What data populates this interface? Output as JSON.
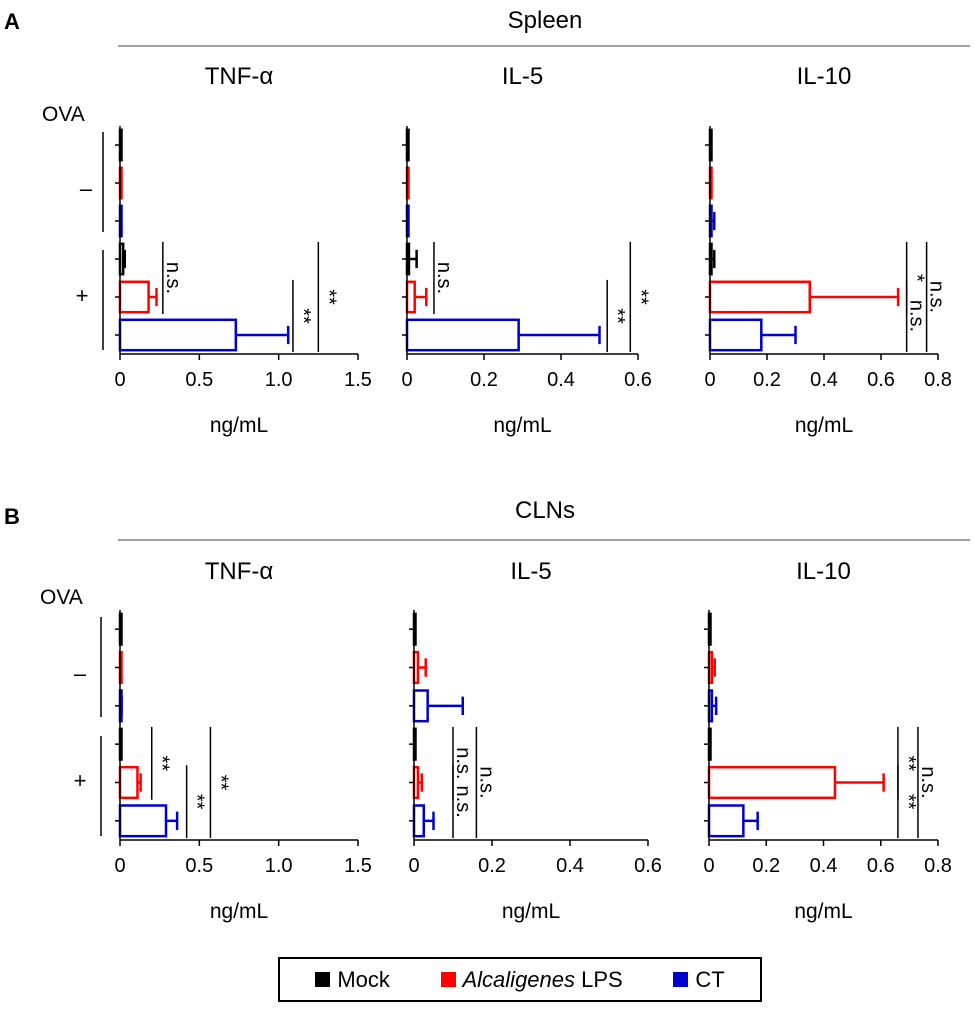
{
  "panels": [
    {
      "letter": "A",
      "title": "Spleen"
    },
    {
      "letter": "B",
      "title": "CLNs"
    }
  ],
  "ova_label": "OVA",
  "row_group_labels": [
    "–",
    "+"
  ],
  "series": [
    {
      "name": "Mock",
      "color": "#000000"
    },
    {
      "name": "Alcaligenes LPS",
      "color": "#ff0000"
    },
    {
      "name": "CT",
      "color": "#0000cc"
    }
  ],
  "legend": {
    "mock": "Mock",
    "lps_italic": "Alcaligenes",
    "lps_rest": " LPS",
    "ct": "CT"
  },
  "chart_data": [
    {
      "type": "bar",
      "panel": "A",
      "group": "Spleen",
      "title": "TNF-α",
      "xlabel": "ng/mL",
      "xlim": [
        0,
        1.5
      ],
      "xticks": [
        0,
        0.5,
        1.0,
        1.5
      ],
      "xtick_labels": [
        "0",
        "0.5",
        "1.0",
        "1.5"
      ],
      "rows": [
        {
          "ova": "-",
          "series": "Mock",
          "value": 0.0,
          "error": 0.0
        },
        {
          "ova": "-",
          "series": "Alcaligenes LPS",
          "value": 0.0,
          "error": 0.0
        },
        {
          "ova": "-",
          "series": "CT",
          "value": 0.0,
          "error": 0.0
        },
        {
          "ova": "+",
          "series": "Mock",
          "value": 0.02,
          "error": 0.01
        },
        {
          "ova": "+",
          "series": "Alcaligenes LPS",
          "value": 0.18,
          "error": 0.05
        },
        {
          "ova": "+",
          "series": "CT",
          "value": 0.73,
          "error": 0.33
        }
      ],
      "annotations": [
        {
          "text": "n.s.",
          "span": [
            3,
            4
          ],
          "x": 0.27
        },
        {
          "text": "**",
          "span": [
            4,
            5
          ],
          "x": 1.09
        },
        {
          "text": "**",
          "span": [
            3,
            5
          ],
          "x": 1.25
        }
      ]
    },
    {
      "type": "bar",
      "panel": "A",
      "group": "Spleen",
      "title": "IL-5",
      "xlabel": "ng/mL",
      "xlim": [
        0,
        0.6
      ],
      "xticks": [
        0,
        0.2,
        0.4,
        0.6
      ],
      "xtick_labels": [
        "0",
        "0.2",
        "0.4",
        "0.6"
      ],
      "rows": [
        {
          "ova": "-",
          "series": "Mock",
          "value": 0.0,
          "error": 0.0
        },
        {
          "ova": "-",
          "series": "Alcaligenes LPS",
          "value": 0.0,
          "error": 0.0
        },
        {
          "ova": "-",
          "series": "CT",
          "value": 0.0,
          "error": 0.0
        },
        {
          "ova": "+",
          "series": "Mock",
          "value": 0.005,
          "error": 0.02
        },
        {
          "ova": "+",
          "series": "Alcaligenes LPS",
          "value": 0.02,
          "error": 0.03
        },
        {
          "ova": "+",
          "series": "CT",
          "value": 0.29,
          "error": 0.21
        }
      ],
      "annotations": [
        {
          "text": "n.s.",
          "span": [
            3,
            4
          ],
          "x": 0.07
        },
        {
          "text": "**",
          "span": [
            4,
            5
          ],
          "x": 0.52
        },
        {
          "text": "**",
          "span": [
            3,
            5
          ],
          "x": 0.58
        }
      ]
    },
    {
      "type": "bar",
      "panel": "A",
      "group": "Spleen",
      "title": "IL-10",
      "xlabel": "ng/mL",
      "xlim": [
        0,
        0.8
      ],
      "xticks": [
        0,
        0.2,
        0.4,
        0.6,
        0.8
      ],
      "xtick_labels": [
        "0",
        "0.2",
        "0.4",
        "0.6",
        "0.8"
      ],
      "rows": [
        {
          "ova": "-",
          "series": "Mock",
          "value": 0.0,
          "error": 0.0
        },
        {
          "ova": "-",
          "series": "Alcaligenes LPS",
          "value": 0.0,
          "error": 0.0
        },
        {
          "ova": "-",
          "series": "CT",
          "value": 0.005,
          "error": 0.01
        },
        {
          "ova": "+",
          "series": "Mock",
          "value": 0.005,
          "error": 0.01
        },
        {
          "ova": "+",
          "series": "Alcaligenes LPS",
          "value": 0.35,
          "error": 0.31
        },
        {
          "ova": "+",
          "series": "CT",
          "value": 0.18,
          "error": 0.12
        }
      ],
      "annotations": [
        {
          "text": "*",
          "span": [
            3,
            4
          ],
          "x": 0.69
        },
        {
          "text": "n.s.",
          "span": [
            4,
            5
          ],
          "x": 0.69
        },
        {
          "text": "n.s.",
          "span": [
            3,
            5
          ],
          "x": 0.76
        }
      ]
    },
    {
      "type": "bar",
      "panel": "B",
      "group": "CLNs",
      "title": "TNF-α",
      "xlabel": "ng/mL",
      "xlim": [
        0,
        1.5
      ],
      "xticks": [
        0,
        0.5,
        1.0,
        1.5
      ],
      "xtick_labels": [
        "0",
        "0.5",
        "1.0",
        "1.5"
      ],
      "rows": [
        {
          "ova": "-",
          "series": "Mock",
          "value": 0.0,
          "error": 0.0
        },
        {
          "ova": "-",
          "series": "Alcaligenes LPS",
          "value": 0.0,
          "error": 0.0
        },
        {
          "ova": "-",
          "series": "CT",
          "value": 0.0,
          "error": 0.01
        },
        {
          "ova": "+",
          "series": "Mock",
          "value": 0.0,
          "error": 0.0
        },
        {
          "ova": "+",
          "series": "Alcaligenes LPS",
          "value": 0.11,
          "error": 0.02
        },
        {
          "ova": "+",
          "series": "CT",
          "value": 0.29,
          "error": 0.07
        }
      ],
      "annotations": [
        {
          "text": "**",
          "span": [
            3,
            4
          ],
          "x": 0.2
        },
        {
          "text": "**",
          "span": [
            4,
            5
          ],
          "x": 0.42
        },
        {
          "text": "**",
          "span": [
            3,
            5
          ],
          "x": 0.57
        }
      ]
    },
    {
      "type": "bar",
      "panel": "B",
      "group": "CLNs",
      "title": "IL-5",
      "xlabel": "ng/mL",
      "xlim": [
        0,
        0.6
      ],
      "xticks": [
        0,
        0.2,
        0.4,
        0.6
      ],
      "xtick_labels": [
        "0",
        "0.2",
        "0.4",
        "0.6"
      ],
      "rows": [
        {
          "ova": "-",
          "series": "Mock",
          "value": 0.0,
          "error": 0.0
        },
        {
          "ova": "-",
          "series": "Alcaligenes LPS",
          "value": 0.01,
          "error": 0.02
        },
        {
          "ova": "-",
          "series": "CT",
          "value": 0.035,
          "error": 0.09
        },
        {
          "ova": "+",
          "series": "Mock",
          "value": 0.0,
          "error": 0.0
        },
        {
          "ova": "+",
          "series": "Alcaligenes LPS",
          "value": 0.01,
          "error": 0.01
        },
        {
          "ova": "+",
          "series": "CT",
          "value": 0.025,
          "error": 0.025
        }
      ],
      "annotations": [
        {
          "text": "n.s.",
          "span": [
            3,
            4
          ],
          "x": 0.1
        },
        {
          "text": "n.s.",
          "span": [
            4,
            5
          ],
          "x": 0.1
        },
        {
          "text": "n.s.",
          "span": [
            3,
            5
          ],
          "x": 0.16
        }
      ]
    },
    {
      "type": "bar",
      "panel": "B",
      "group": "CLNs",
      "title": "IL-10",
      "xlabel": "ng/mL",
      "xlim": [
        0,
        0.8
      ],
      "xticks": [
        0,
        0.2,
        0.4,
        0.6,
        0.8
      ],
      "xtick_labels": [
        "0",
        "0.2",
        "0.4",
        "0.6",
        "0.8"
      ],
      "rows": [
        {
          "ova": "-",
          "series": "Mock",
          "value": 0.0,
          "error": 0.0
        },
        {
          "ova": "-",
          "series": "Alcaligenes LPS",
          "value": 0.01,
          "error": 0.01
        },
        {
          "ova": "-",
          "series": "CT",
          "value": 0.01,
          "error": 0.015
        },
        {
          "ova": "+",
          "series": "Mock",
          "value": 0.0,
          "error": 0.0
        },
        {
          "ova": "+",
          "series": "Alcaligenes LPS",
          "value": 0.44,
          "error": 0.17
        },
        {
          "ova": "+",
          "series": "CT",
          "value": 0.12,
          "error": 0.05
        }
      ],
      "annotations": [
        {
          "text": "**",
          "span": [
            3,
            4
          ],
          "x": 0.66
        },
        {
          "text": "**",
          "span": [
            4,
            5
          ],
          "x": 0.66
        },
        {
          "text": "n.s.",
          "span": [
            3,
            5
          ],
          "x": 0.73
        }
      ]
    }
  ]
}
